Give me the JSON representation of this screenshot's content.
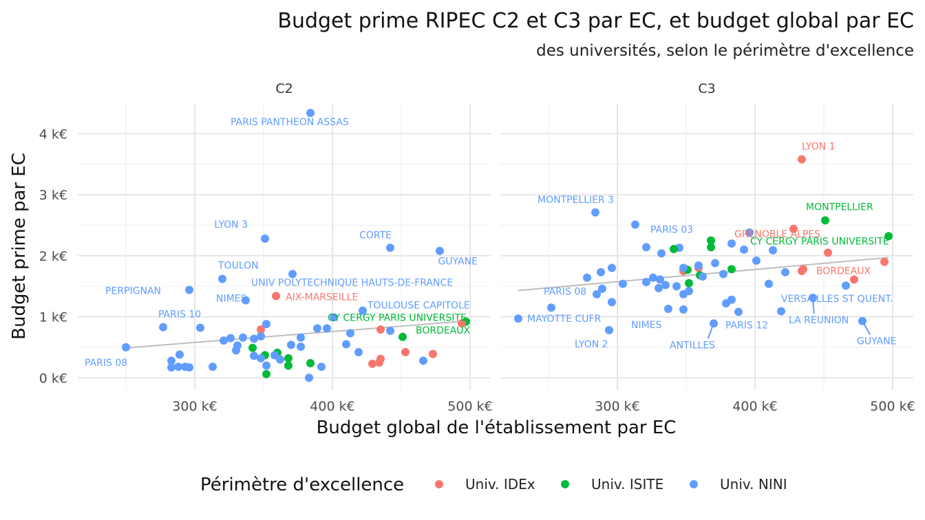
{
  "chart_data": {
    "type": "scatter",
    "title": "Budget prime RIPEC C2 et C3 par EC, et budget global par EC",
    "subtitle": "des universités, selon le périmètre d'excellence",
    "xlabel": "Budget global de l'établissement par EC",
    "ylabel": "Budget prime par EC",
    "x_unit": "k€",
    "y_unit": "k€",
    "xlim": [
      215,
      515
    ],
    "ylim": [
      -0.2,
      4.5
    ],
    "x_ticks": [
      300,
      400,
      500
    ],
    "x_tick_labels": [
      "300 k€",
      "400 k€",
      "500 k€"
    ],
    "y_ticks": [
      0,
      1,
      2,
      3,
      4
    ],
    "y_tick_labels": [
      "0 k€",
      "1 k€",
      "2 k€",
      "3 k€",
      "4 k€"
    ],
    "grid": true,
    "legend": {
      "title": "Périmètre d'excellence",
      "position": "bottom",
      "entries": [
        {
          "key": "IDEX",
          "label": "Univ. IDEx",
          "color": "#F8766D"
        },
        {
          "key": "ISITE",
          "label": "Univ. ISITE",
          "color": "#00BA38"
        },
        {
          "key": "NINI",
          "label": "Univ. NINI",
          "color": "#619CFF"
        }
      ]
    },
    "facets": [
      {
        "name": "C2",
        "trend": [
          [
            250,
            0.49
          ],
          [
            497,
            0.93
          ]
        ],
        "points": [
          {
            "x": 384,
            "y": 4.34,
            "g": "NINI",
            "label": "PARIS PANTHEON ASSAS"
          },
          {
            "x": 351,
            "y": 2.28,
            "g": "NINI",
            "label": "LYON 3"
          },
          {
            "x": 442,
            "y": 2.13,
            "g": "NINI",
            "label": "CORTE"
          },
          {
            "x": 478,
            "y": 2.08,
            "g": "NINI",
            "label": "GUYANE"
          },
          {
            "x": 371,
            "y": 1.7,
            "g": "NINI",
            "label": "UNIV POLYTECHNIQUE HAUTS-DE-FRANCE"
          },
          {
            "x": 320,
            "y": 1.62,
            "g": "NINI",
            "label": "TOULON"
          },
          {
            "x": 296,
            "y": 1.44,
            "g": "NINI",
            "label": "PERPIGNAN"
          },
          {
            "x": 359,
            "y": 1.34,
            "g": "IDEX",
            "label": "AIX-MARSEILLE"
          },
          {
            "x": 337,
            "y": 1.27,
            "g": "NINI",
            "label": "NIMES"
          },
          {
            "x": 422,
            "y": 1.1,
            "g": "NINI",
            "label": "TOULOUSE CAPITOLE"
          },
          {
            "x": 497,
            "y": 0.92,
            "g": "ISITE",
            "label": "CY CERGY PARIS UNIVERSITE"
          },
          {
            "x": 277,
            "y": 0.83,
            "g": "NINI",
            "label": "PARIS 10"
          },
          {
            "x": 451,
            "y": 0.67,
            "g": "ISITE",
            "label": "BORDEAUX"
          },
          {
            "x": 250,
            "y": 0.5,
            "g": "NINI",
            "label": "PARIS 08"
          },
          {
            "x": 494,
            "y": 0.89,
            "g": "IDEX"
          },
          {
            "x": 435,
            "y": 0.79,
            "g": "IDEX"
          },
          {
            "x": 453,
            "y": 0.42,
            "g": "IDEX"
          },
          {
            "x": 473,
            "y": 0.39,
            "g": "IDEX"
          },
          {
            "x": 429,
            "y": 0.23,
            "g": "IDEX"
          },
          {
            "x": 434,
            "y": 0.25,
            "g": "IDEX"
          },
          {
            "x": 435,
            "y": 0.31,
            "g": "IDEX"
          },
          {
            "x": 348,
            "y": 0.79,
            "g": "IDEX"
          },
          {
            "x": 342,
            "y": 0.49,
            "g": "ISITE"
          },
          {
            "x": 351,
            "y": 0.37,
            "g": "ISITE"
          },
          {
            "x": 368,
            "y": 0.32,
            "g": "ISITE"
          },
          {
            "x": 368,
            "y": 0.2,
            "g": "ISITE"
          },
          {
            "x": 384,
            "y": 0.24,
            "g": "ISITE"
          },
          {
            "x": 352,
            "y": 0.06,
            "g": "ISITE"
          },
          {
            "x": 360,
            "y": 0.41,
            "g": "ISITE"
          },
          {
            "x": 304,
            "y": 0.82,
            "g": "NINI"
          },
          {
            "x": 352,
            "y": 0.88,
            "g": "NINI"
          },
          {
            "x": 396,
            "y": 0.81,
            "g": "NINI"
          },
          {
            "x": 401,
            "y": 0.99,
            "g": "NINI"
          },
          {
            "x": 389,
            "y": 0.81,
            "g": "NINI"
          },
          {
            "x": 413,
            "y": 0.73,
            "g": "NINI"
          },
          {
            "x": 442,
            "y": 0.77,
            "g": "NINI"
          },
          {
            "x": 377,
            "y": 0.66,
            "g": "NINI"
          },
          {
            "x": 410,
            "y": 0.55,
            "g": "NINI"
          },
          {
            "x": 419,
            "y": 0.42,
            "g": "NINI"
          },
          {
            "x": 466,
            "y": 0.28,
            "g": "NINI"
          },
          {
            "x": 370,
            "y": 0.54,
            "g": "NINI"
          },
          {
            "x": 377,
            "y": 0.51,
            "g": "NINI"
          },
          {
            "x": 348,
            "y": 0.68,
            "g": "NINI"
          },
          {
            "x": 343,
            "y": 0.64,
            "g": "NINI"
          },
          {
            "x": 335,
            "y": 0.66,
            "g": "NINI"
          },
          {
            "x": 326,
            "y": 0.65,
            "g": "NINI"
          },
          {
            "x": 321,
            "y": 0.61,
            "g": "NINI"
          },
          {
            "x": 331,
            "y": 0.53,
            "g": "NINI"
          },
          {
            "x": 330,
            "y": 0.45,
            "g": "NINI"
          },
          {
            "x": 343,
            "y": 0.36,
            "g": "NINI"
          },
          {
            "x": 348,
            "y": 0.32,
            "g": "NINI"
          },
          {
            "x": 352,
            "y": 0.2,
            "g": "NINI"
          },
          {
            "x": 358,
            "y": 0.37,
            "g": "NINI"
          },
          {
            "x": 362,
            "y": 0.3,
            "g": "NINI"
          },
          {
            "x": 392,
            "y": 0.18,
            "g": "NINI"
          },
          {
            "x": 383,
            "y": 0.0,
            "g": "NINI"
          },
          {
            "x": 313,
            "y": 0.18,
            "g": "NINI"
          },
          {
            "x": 296,
            "y": 0.17,
            "g": "NINI"
          },
          {
            "x": 293,
            "y": 0.18,
            "g": "NINI"
          },
          {
            "x": 288,
            "y": 0.18,
            "g": "NINI"
          },
          {
            "x": 283,
            "y": 0.17,
            "g": "NINI"
          },
          {
            "x": 283,
            "y": 0.28,
            "g": "NINI"
          },
          {
            "x": 289,
            "y": 0.38,
            "g": "NINI"
          }
        ]
      },
      {
        "name": "C3",
        "trend": [
          [
            228,
            1.43
          ],
          [
            497,
            1.97
          ]
        ],
        "points": [
          {
            "x": 434,
            "y": 3.58,
            "g": "IDEX",
            "label": "LYON 1"
          },
          {
            "x": 284,
            "y": 2.71,
            "g": "NINI",
            "label": "MONTPELLIER 3"
          },
          {
            "x": 451,
            "y": 2.58,
            "g": "ISITE",
            "label": "MONTPELLIER"
          },
          {
            "x": 345,
            "y": 2.13,
            "g": "NINI",
            "label": "PARIS 03"
          },
          {
            "x": 428,
            "y": 2.44,
            "g": "IDEX",
            "label": "GRENOBLE ALPES"
          },
          {
            "x": 497,
            "y": 2.32,
            "g": "ISITE",
            "label": "CY CERGY PARIS UNIVERSITE"
          },
          {
            "x": 472,
            "y": 1.61,
            "g": "IDEX",
            "label": "BORDEAUX"
          },
          {
            "x": 285,
            "y": 1.37,
            "g": "NINI",
            "label": "PARIS 08"
          },
          {
            "x": 442,
            "y": 1.31,
            "g": "NINI",
            "label": "VERSAILLES ST QUENT."
          },
          {
            "x": 228,
            "y": 0.97,
            "g": "NINI",
            "label": "MAYOTTE CUFR"
          },
          {
            "x": 348,
            "y": 1.12,
            "g": "NINI",
            "label": "NIMES"
          },
          {
            "x": 388,
            "y": 1.08,
            "g": "NINI",
            "label": "PARIS 12"
          },
          {
            "x": 442,
            "y": 1.31,
            "g": "NINI",
            "label": "LA REUNION"
          },
          {
            "x": 370,
            "y": 0.89,
            "g": "NINI",
            "label": "ANTILLES"
          },
          {
            "x": 478,
            "y": 0.93,
            "g": "NINI",
            "label": "GUYANE"
          },
          {
            "x": 294,
            "y": 0.78,
            "g": "NINI",
            "label": "LYON 2"
          },
          {
            "x": 453,
            "y": 2.05,
            "g": "IDEX"
          },
          {
            "x": 494,
            "y": 1.9,
            "g": "IDEX"
          },
          {
            "x": 435,
            "y": 1.78,
            "g": "IDEX"
          },
          {
            "x": 434,
            "y": 1.75,
            "g": "IDEX"
          },
          {
            "x": 348,
            "y": 1.75,
            "g": "IDEX"
          },
          {
            "x": 359,
            "y": 1.8,
            "g": "IDEX"
          },
          {
            "x": 341,
            "y": 2.11,
            "g": "ISITE"
          },
          {
            "x": 368,
            "y": 2.25,
            "g": "ISITE"
          },
          {
            "x": 368,
            "y": 2.14,
            "g": "ISITE"
          },
          {
            "x": 383,
            "y": 1.78,
            "g": "ISITE"
          },
          {
            "x": 351,
            "y": 1.77,
            "g": "ISITE"
          },
          {
            "x": 352,
            "y": 1.55,
            "g": "ISITE"
          },
          {
            "x": 360,
            "y": 1.68,
            "g": "ISITE"
          },
          {
            "x": 313,
            "y": 2.51,
            "g": "NINI"
          },
          {
            "x": 396,
            "y": 2.38,
            "g": "NINI"
          },
          {
            "x": 383,
            "y": 2.2,
            "g": "NINI"
          },
          {
            "x": 392,
            "y": 2.1,
            "g": "NINI"
          },
          {
            "x": 413,
            "y": 2.09,
            "g": "NINI"
          },
          {
            "x": 321,
            "y": 2.14,
            "g": "NINI"
          },
          {
            "x": 332,
            "y": 2.04,
            "g": "NINI"
          },
          {
            "x": 401,
            "y": 1.92,
            "g": "NINI"
          },
          {
            "x": 371,
            "y": 1.88,
            "g": "NINI"
          },
          {
            "x": 359,
            "y": 1.84,
            "g": "NINI"
          },
          {
            "x": 348,
            "y": 1.8,
            "g": "NINI"
          },
          {
            "x": 296,
            "y": 1.8,
            "g": "NINI"
          },
          {
            "x": 288,
            "y": 1.73,
            "g": "NINI"
          },
          {
            "x": 278,
            "y": 1.64,
            "g": "NINI"
          },
          {
            "x": 304,
            "y": 1.54,
            "g": "NINI"
          },
          {
            "x": 321,
            "y": 1.57,
            "g": "NINI"
          },
          {
            "x": 326,
            "y": 1.64,
            "g": "NINI"
          },
          {
            "x": 331,
            "y": 1.61,
            "g": "NINI"
          },
          {
            "x": 335,
            "y": 1.52,
            "g": "NINI"
          },
          {
            "x": 343,
            "y": 1.5,
            "g": "NINI"
          },
          {
            "x": 352,
            "y": 1.42,
            "g": "NINI"
          },
          {
            "x": 348,
            "y": 1.37,
            "g": "NINI"
          },
          {
            "x": 330,
            "y": 1.47,
            "g": "NINI"
          },
          {
            "x": 362,
            "y": 1.66,
            "g": "NINI"
          },
          {
            "x": 377,
            "y": 1.7,
            "g": "NINI"
          },
          {
            "x": 422,
            "y": 1.73,
            "g": "NINI"
          },
          {
            "x": 410,
            "y": 1.54,
            "g": "NINI"
          },
          {
            "x": 466,
            "y": 1.51,
            "g": "NINI"
          },
          {
            "x": 383,
            "y": 1.28,
            "g": "NINI"
          },
          {
            "x": 379,
            "y": 1.22,
            "g": "NINI"
          },
          {
            "x": 337,
            "y": 1.13,
            "g": "NINI"
          },
          {
            "x": 419,
            "y": 1.09,
            "g": "NINI"
          },
          {
            "x": 296,
            "y": 1.24,
            "g": "NINI"
          },
          {
            "x": 289,
            "y": 1.46,
            "g": "NINI"
          },
          {
            "x": 252,
            "y": 1.15,
            "g": "NINI"
          }
        ]
      }
    ]
  }
}
